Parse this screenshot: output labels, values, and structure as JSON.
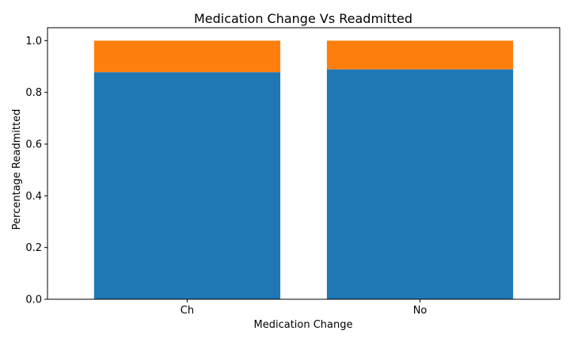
{
  "chart_data": {
    "type": "bar",
    "stacked": true,
    "title": "Medication Change Vs Readmitted",
    "xlabel": "Medication Change",
    "ylabel": "Percentage Readmitted",
    "categories": [
      "Ch",
      "No"
    ],
    "series": [
      {
        "values": [
          0.878,
          0.889
        ],
        "color": "#1f77b4"
      },
      {
        "values": [
          0.122,
          0.111
        ],
        "color": "#ff7f0e"
      }
    ],
    "ylim": [
      0,
      1.05
    ],
    "yticks": [
      "0.0",
      "0.2",
      "0.4",
      "0.6",
      "0.8",
      "1.0"
    ],
    "grid": false,
    "legend": "none"
  }
}
